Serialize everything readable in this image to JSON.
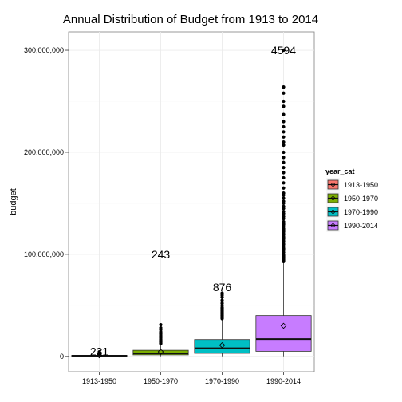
{
  "chart_data": {
    "type": "boxplot",
    "title": "Annual Distribution of Budget from 1913 to 2014",
    "xlabel": "",
    "ylabel": "budget",
    "ylim": [
      -15000000,
      318000000
    ],
    "y_ticks": [
      0,
      100000000,
      200000000,
      300000000
    ],
    "y_tick_labels": [
      "0",
      "100,000,000",
      "200,000,000",
      "300,000,000"
    ],
    "grid": true,
    "legend": {
      "title": "year_cat",
      "placement": "right",
      "entries": [
        "1913-1950",
        "1950-1970",
        "1970-1990",
        "1990-2014"
      ]
    },
    "categories": [
      "1913-1950",
      "1950-1970",
      "1970-1990",
      "1990-2014"
    ],
    "colors": [
      "#F8766D",
      "#7CAE00",
      "#00BFC4",
      "#C77CFF"
    ],
    "boxes": [
      {
        "category": "1913-1950",
        "q1": 200000,
        "median": 600000,
        "q3": 1000000,
        "whisker_low": 0,
        "whisker_high": 2000000,
        "mean": 1000000,
        "count_label": "231",
        "count_label_y": 5000000,
        "outliers": [
          2500000,
          3000000,
          4000000,
          4500000
        ]
      },
      {
        "category": "1950-1970",
        "q1": 1500000,
        "median": 3000000,
        "q3": 6000000,
        "whisker_low": 0,
        "whisker_high": 12000000,
        "mean": 4500000,
        "count_label": "243",
        "count_label_y": 100000000,
        "outliers": [
          12500000,
          13000000,
          13500000,
          14000000,
          14500000,
          15000000,
          15500000,
          16000000,
          17000000,
          18000000,
          19000000,
          20000000,
          21000000,
          22000000,
          24000000,
          26000000,
          28000000,
          31000000
        ]
      },
      {
        "category": "1970-1990",
        "q1": 3000000,
        "median": 8000000,
        "q3": 16500000,
        "whisker_low": 0,
        "whisker_high": 36000000,
        "mean": 11000000,
        "count_label": "876",
        "count_label_y": 68000000,
        "outliers": [
          37000000,
          38000000,
          39000000,
          40000000,
          41000000,
          42000000,
          43000000,
          44000000,
          45000000,
          46000000,
          47000000,
          48000000,
          50000000,
          52000000,
          55000000,
          58000000,
          60000000,
          62000000
        ]
      },
      {
        "category": "1990-2014",
        "q1": 5000000,
        "median": 17000000,
        "q3": 40000000,
        "whisker_low": 0,
        "whisker_high": 92000000,
        "mean": 30000000,
        "count_label": "4594",
        "count_label_y": 300000000,
        "outliers": [
          93000000,
          94000000,
          95000000,
          96000000,
          97000000,
          98000000,
          99000000,
          100000000,
          102000000,
          104000000,
          105000000,
          106000000,
          108000000,
          110000000,
          112000000,
          113000000,
          115000000,
          117000000,
          119000000,
          120000000,
          122000000,
          124000000,
          125000000,
          127000000,
          129000000,
          130000000,
          132000000,
          135000000,
          137000000,
          140000000,
          142000000,
          145000000,
          147000000,
          150000000,
          152000000,
          155000000,
          158000000,
          160000000,
          165000000,
          170000000,
          175000000,
          180000000,
          185000000,
          190000000,
          195000000,
          200000000,
          207000000,
          210000000,
          215000000,
          220000000,
          225000000,
          230000000,
          237000000,
          245000000,
          250000000,
          258000000,
          264000000,
          300000000
        ]
      }
    ]
  }
}
